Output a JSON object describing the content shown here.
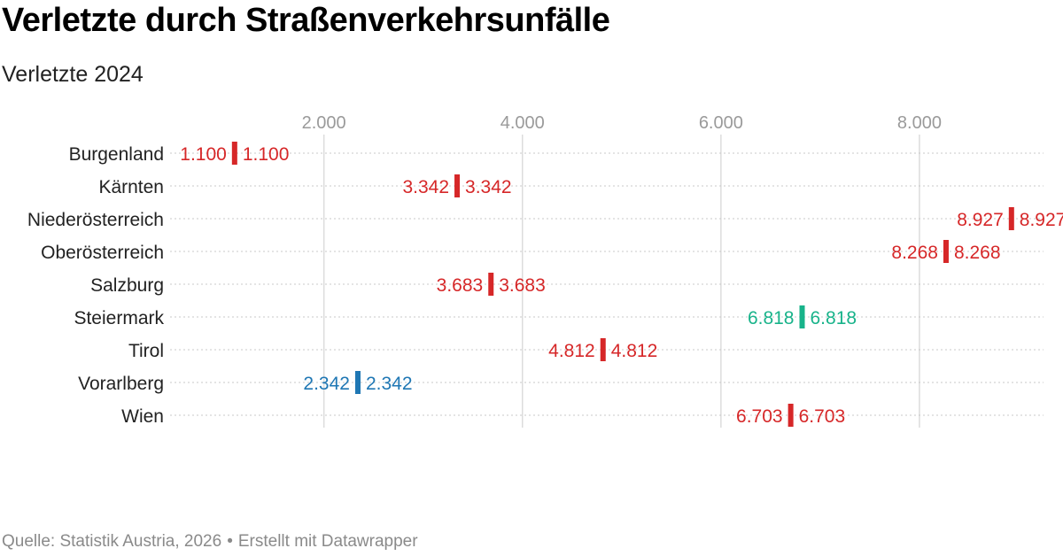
{
  "header": {
    "title": "Verletzte durch Straßenverkehrsunfälle",
    "subtitle": "Verletzte 2024"
  },
  "footer": {
    "source": "Quelle: Statistik Austria, 2026",
    "separator": "•",
    "credit": "Erstellt mit Datawrapper"
  },
  "chart_data": {
    "type": "range",
    "title": "Verletzte durch Straßenverkehrsunfälle",
    "subtitle": "Verletzte 2024",
    "xlim": [
      450,
      9250
    ],
    "x_ticks": [
      2000,
      4000,
      6000,
      8000
    ],
    "x_tick_labels": [
      "2.000",
      "4.000",
      "6.000",
      "8.000"
    ],
    "grid": true,
    "categories": [
      "Burgenland",
      "Kärnten",
      "Niederösterreich",
      "Oberösterreich",
      "Salzburg",
      "Steiermark",
      "Tirol",
      "Vorarlberg",
      "Wien"
    ],
    "series": [
      {
        "values": [
          1100,
          3342,
          8927,
          8268,
          3683,
          6818,
          4812,
          2342,
          6703
        ]
      },
      {
        "values": [
          1100,
          3342,
          8927,
          8268,
          3683,
          6818,
          4812,
          2342,
          6703
        ]
      }
    ],
    "value_labels": [
      "1.100",
      "3.342",
      "8.927",
      "8.268",
      "3.683",
      "6.818",
      "4.812",
      "2.342",
      "6.703"
    ],
    "colors": [
      "#d62728",
      "#d62728",
      "#d62728",
      "#d62728",
      "#d62728",
      "#18b38a",
      "#d62728",
      "#1f77b4",
      "#d62728"
    ]
  }
}
